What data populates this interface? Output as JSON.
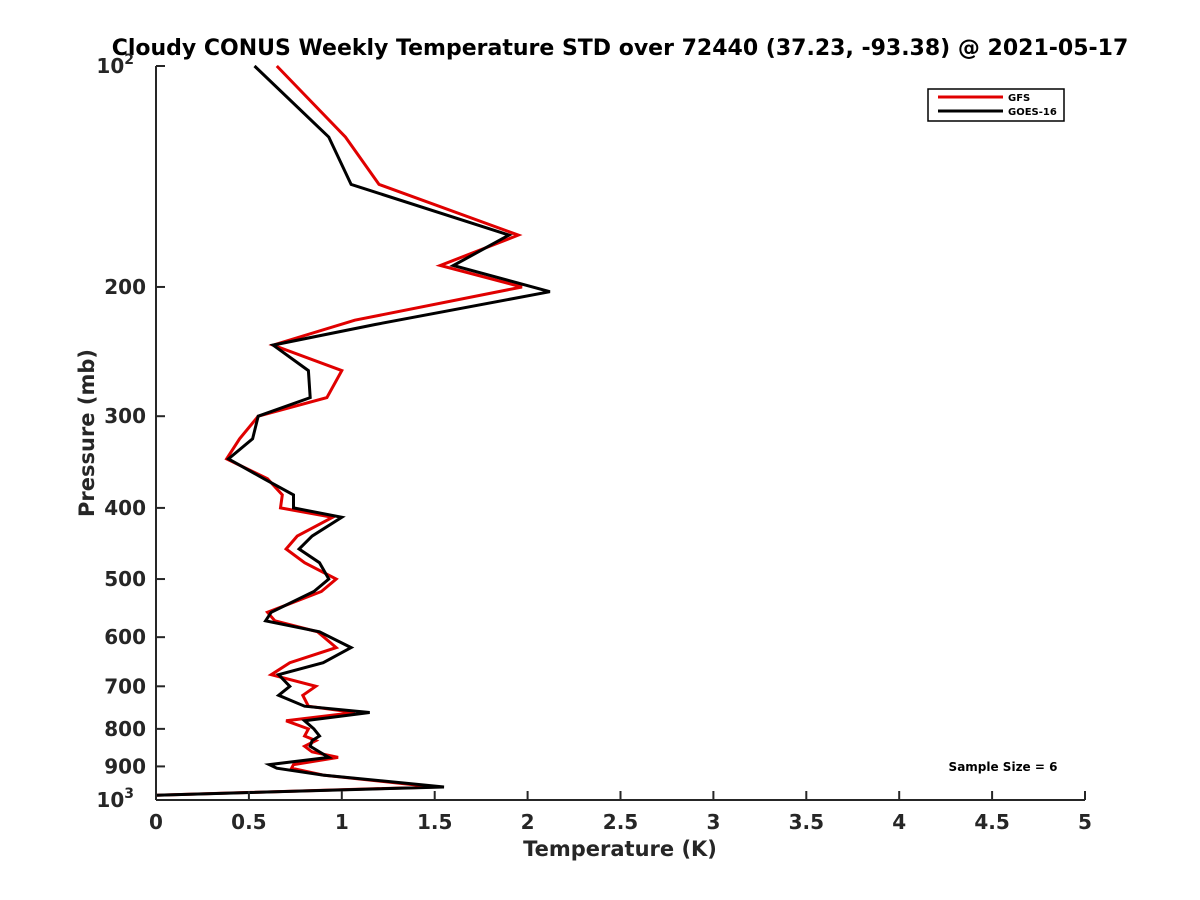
{
  "chart_data": {
    "type": "line",
    "title": "Cloudy CONUS Weekly Temperature STD over 72440 (37.23, -93.38) @ 2021-05-17",
    "xlabel": "Temperature (K)",
    "ylabel": "Pressure (mb)",
    "xlim": [
      0,
      5
    ],
    "ylim": [
      100,
      1000
    ],
    "y_scale": "log",
    "y_reversed": true,
    "grid": false,
    "legend_position": "top-right",
    "x_ticks": [
      {
        "value": 0,
        "label": "0"
      },
      {
        "value": 0.5,
        "label": "0.5"
      },
      {
        "value": 1,
        "label": "1"
      },
      {
        "value": 1.5,
        "label": "1.5"
      },
      {
        "value": 2,
        "label": "2"
      },
      {
        "value": 2.5,
        "label": "2.5"
      },
      {
        "value": 3,
        "label": "3"
      },
      {
        "value": 3.5,
        "label": "3.5"
      },
      {
        "value": 4,
        "label": "4"
      },
      {
        "value": 4.5,
        "label": "4.5"
      },
      {
        "value": 5,
        "label": "5"
      }
    ],
    "y_ticks": [
      {
        "value": 100,
        "label": "10",
        "sup": "2"
      },
      {
        "value": 200,
        "label": "200",
        "sup": ""
      },
      {
        "value": 300,
        "label": "300",
        "sup": ""
      },
      {
        "value": 400,
        "label": "400",
        "sup": ""
      },
      {
        "value": 500,
        "label": "500",
        "sup": ""
      },
      {
        "value": 600,
        "label": "600",
        "sup": ""
      },
      {
        "value": 700,
        "label": "700",
        "sup": ""
      },
      {
        "value": 800,
        "label": "800",
        "sup": ""
      },
      {
        "value": 900,
        "label": "900",
        "sup": ""
      },
      {
        "value": 1000,
        "label": "10",
        "sup": "3"
      }
    ],
    "series": [
      {
        "name": "GFS",
        "color": "#e00000",
        "points": [
          [
            0.65,
            100
          ],
          [
            1.02,
            125
          ],
          [
            1.2,
            145
          ],
          [
            1.95,
            170
          ],
          [
            1.53,
            187
          ],
          [
            1.97,
            200
          ],
          [
            1.07,
            222
          ],
          [
            0.63,
            240
          ],
          [
            1.0,
            260
          ],
          [
            0.92,
            283
          ],
          [
            0.55,
            300
          ],
          [
            0.45,
            322
          ],
          [
            0.38,
            343
          ],
          [
            0.6,
            365
          ],
          [
            0.68,
            384
          ],
          [
            0.67,
            400
          ],
          [
            0.95,
            412
          ],
          [
            0.76,
            437
          ],
          [
            0.7,
            455
          ],
          [
            0.8,
            475
          ],
          [
            0.97,
            500
          ],
          [
            0.89,
            520
          ],
          [
            0.6,
            555
          ],
          [
            0.64,
            570
          ],
          [
            0.87,
            590
          ],
          [
            0.97,
            620
          ],
          [
            0.72,
            650
          ],
          [
            0.62,
            675
          ],
          [
            0.86,
            700
          ],
          [
            0.79,
            720
          ],
          [
            0.82,
            745
          ],
          [
            1.07,
            760
          ],
          [
            0.7,
            780
          ],
          [
            0.82,
            800
          ],
          [
            0.8,
            818
          ],
          [
            0.86,
            830
          ],
          [
            0.8,
            845
          ],
          [
            0.84,
            860
          ],
          [
            0.98,
            875
          ],
          [
            0.74,
            895
          ],
          [
            0.73,
            905
          ],
          [
            0.9,
            925
          ],
          [
            1.5,
            960
          ],
          [
            0.0,
            985
          ]
        ]
      },
      {
        "name": "GOES-16",
        "color": "#000000",
        "points": [
          [
            0.53,
            100
          ],
          [
            0.93,
            125
          ],
          [
            1.05,
            145
          ],
          [
            1.9,
            170
          ],
          [
            1.6,
            187
          ],
          [
            2.12,
            203
          ],
          [
            1.18,
            225
          ],
          [
            0.63,
            240
          ],
          [
            0.82,
            260
          ],
          [
            0.83,
            283
          ],
          [
            0.55,
            300
          ],
          [
            0.52,
            322
          ],
          [
            0.39,
            343
          ],
          [
            0.58,
            365
          ],
          [
            0.74,
            384
          ],
          [
            0.74,
            400
          ],
          [
            1.0,
            412
          ],
          [
            0.84,
            437
          ],
          [
            0.77,
            455
          ],
          [
            0.88,
            475
          ],
          [
            0.93,
            500
          ],
          [
            0.85,
            520
          ],
          [
            0.62,
            555
          ],
          [
            0.59,
            570
          ],
          [
            0.88,
            590
          ],
          [
            1.05,
            620
          ],
          [
            0.9,
            650
          ],
          [
            0.66,
            675
          ],
          [
            0.72,
            700
          ],
          [
            0.66,
            720
          ],
          [
            0.8,
            745
          ],
          [
            1.15,
            760
          ],
          [
            0.8,
            780
          ],
          [
            0.85,
            800
          ],
          [
            0.88,
            818
          ],
          [
            0.84,
            830
          ],
          [
            0.83,
            845
          ],
          [
            0.88,
            860
          ],
          [
            0.93,
            875
          ],
          [
            0.61,
            895
          ],
          [
            0.65,
            905
          ],
          [
            0.9,
            925
          ],
          [
            1.55,
            960
          ],
          [
            0.0,
            985
          ]
        ]
      }
    ],
    "annotation": "Sample Size = 6"
  }
}
